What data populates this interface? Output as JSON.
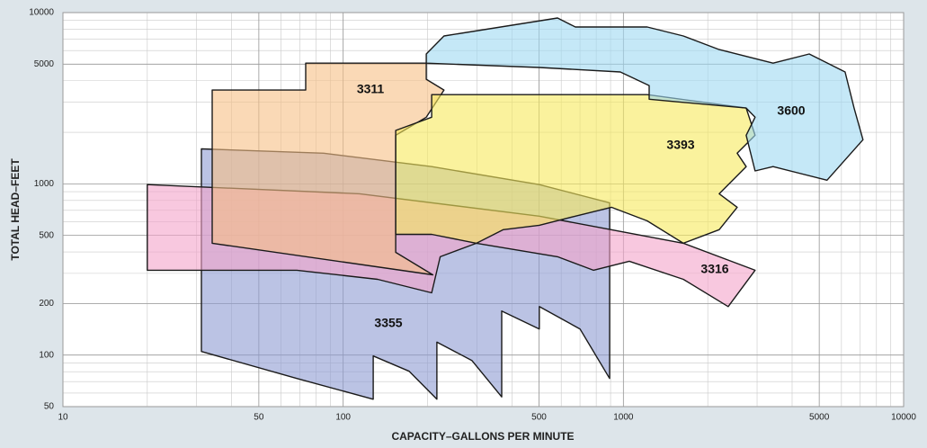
{
  "chart_data": {
    "type": "region",
    "x_label": "CAPACITY–GALLONS PER MINUTE",
    "y_label": "TOTAL HEAD–FEET",
    "x_log": true,
    "y_log": true,
    "grid": true,
    "xlim": [
      10,
      10000
    ],
    "ylim": [
      50,
      10000
    ],
    "xticks": [
      10,
      50,
      100,
      500,
      1000,
      5000,
      10000
    ],
    "yticks": [
      50,
      100,
      200,
      500,
      1000,
      5000,
      10000
    ],
    "series": [
      {
        "name": "3355",
        "color": "#8e9bd2",
        "x": [
          31.2,
          85.2,
          207,
          501,
          893,
          893,
          700,
          501,
          501,
          368,
          368,
          288,
          216,
          216,
          172,
          128,
          128,
          68.3,
          31.2
        ],
        "y": [
          1600,
          1510,
          1260,
          990,
          775,
          73,
          142,
          192,
          142,
          181,
          57,
          93,
          119,
          55.2,
          80.4,
          98.8,
          55.2,
          73,
          105
        ]
      },
      {
        "name": "3316",
        "color": "#f4a4c9",
        "x": [
          20,
          114.5,
          501,
          1636,
          2950,
          2366,
          1636,
          1050,
          782,
          582,
          299,
          222,
          207,
          132.7,
          68.3,
          20
        ],
        "y": [
          990,
          875,
          647,
          450,
          313,
          192,
          277,
          353,
          313,
          375,
          450,
          375,
          231,
          277,
          313,
          313
        ]
      },
      {
        "name": "3311",
        "color": "#f7bf86",
        "x": [
          34.1,
          73.5,
          73.5,
          198,
          198,
          229,
          198,
          154,
          154,
          209,
          34.1
        ],
        "y": [
          3530,
          3530,
          5070,
          5070,
          4080,
          3530,
          2450,
          1920,
          398,
          294,
          450
        ]
      },
      {
        "name": "3393",
        "color": "#f6e95c",
        "x": [
          154,
          207,
          207,
          1216,
          2742,
          2950,
          2548,
          2742,
          2198,
          2548,
          2198,
          1636,
          1216,
          906,
          674,
          501,
          373,
          299,
          207,
          154
        ],
        "y": [
          2050,
          2450,
          3320,
          3320,
          2770,
          1920,
          1510,
          1260,
          875,
          730,
          540,
          450,
          608,
          730,
          647,
          573,
          540,
          450,
          507,
          507
        ]
      },
      {
        "name": "3600",
        "color": "#9fd8f2",
        "x": [
          198,
          229,
          582,
          674,
          1216,
          1636,
          2198,
          3420,
          4603,
          6180,
          6654,
          7160,
          5330,
          3420,
          2950,
          2742,
          2950,
          2742,
          1236,
          1236,
          975,
          501,
          198
        ],
        "y": [
          5730,
          7300,
          9300,
          8240,
          8240,
          7300,
          6080,
          5070,
          5730,
          4500,
          2770,
          1810,
          1050,
          1260,
          1190,
          1920,
          2450,
          2770,
          3120,
          3750,
          4500,
          4780,
          5070
        ]
      }
    ]
  }
}
